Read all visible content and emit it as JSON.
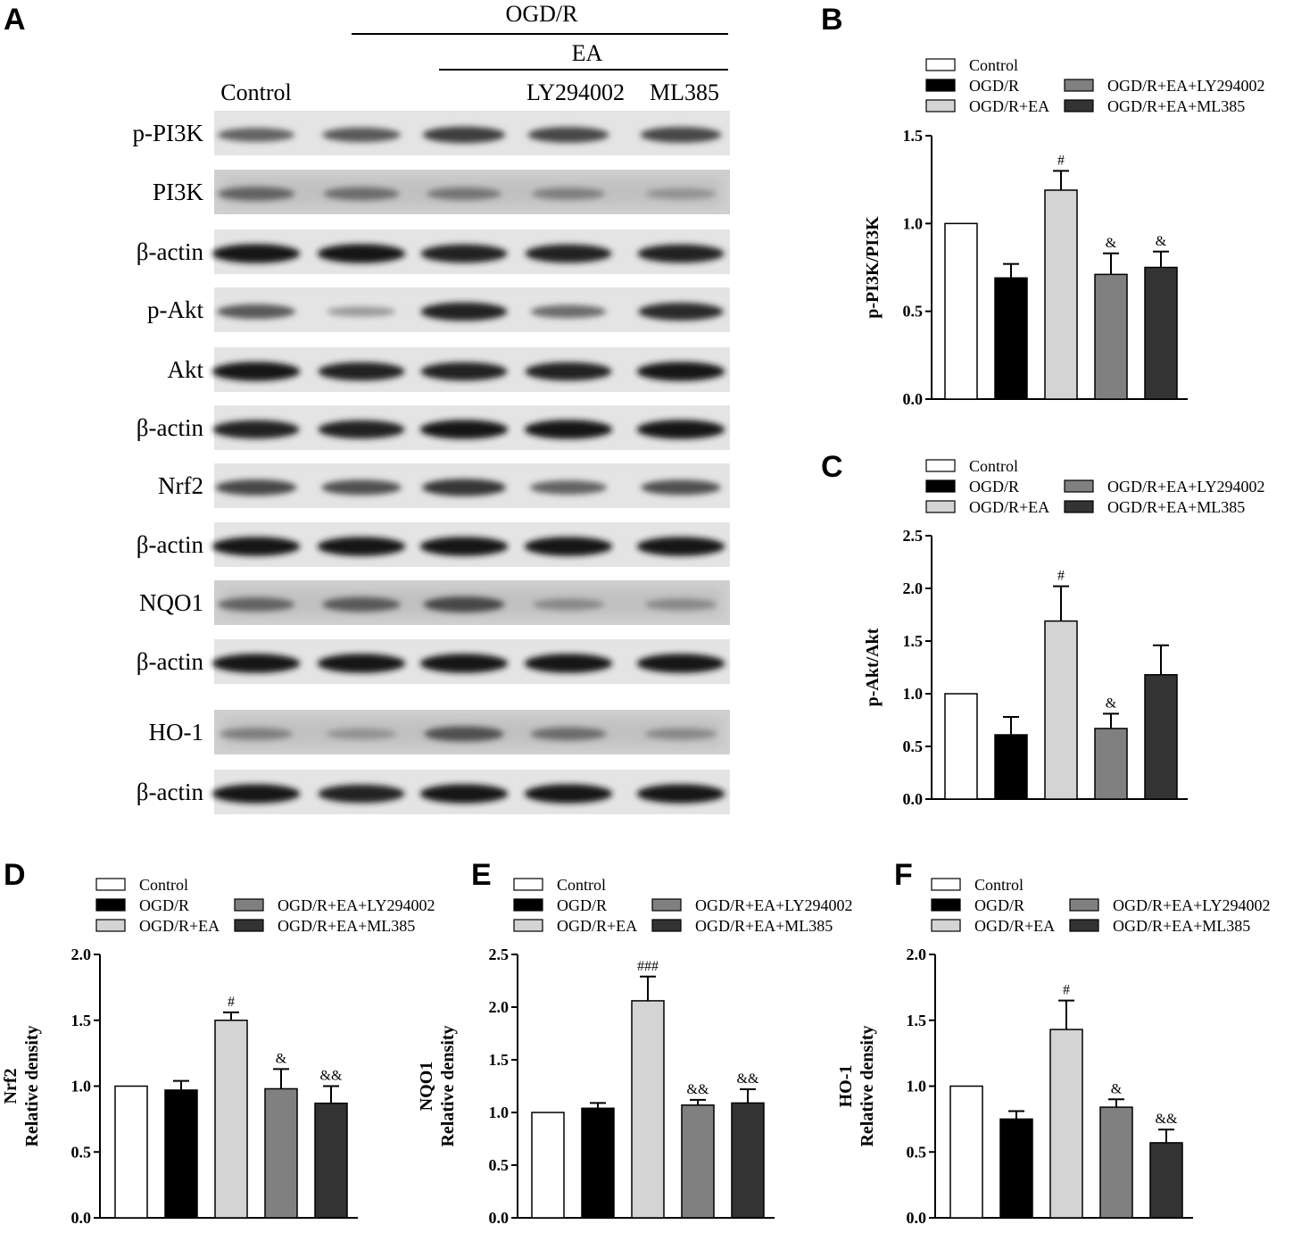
{
  "blot": {
    "panel_letter": "A",
    "header_ogdr": "OGD/R",
    "header_ea": "EA",
    "lane_labels": [
      "Control",
      "",
      "",
      "LY294002",
      "ML385"
    ],
    "rows": [
      {
        "label": "p-PI3K",
        "intensity": [
          0.55,
          0.6,
          0.75,
          0.7,
          0.7
        ],
        "diffuse": false
      },
      {
        "label": "PI3K",
        "intensity": [
          0.55,
          0.5,
          0.45,
          0.4,
          0.3
        ],
        "diffuse": true
      },
      {
        "label": "β-actin",
        "intensity": [
          0.95,
          0.95,
          0.9,
          0.9,
          0.9
        ],
        "diffuse": false
      },
      {
        "label": "p-Akt",
        "intensity": [
          0.6,
          0.25,
          0.9,
          0.5,
          0.85
        ],
        "diffuse": false
      },
      {
        "label": "Akt",
        "intensity": [
          0.95,
          0.9,
          0.9,
          0.9,
          0.95
        ],
        "diffuse": false
      },
      {
        "label": "β-actin",
        "intensity": [
          0.9,
          0.9,
          0.95,
          0.95,
          0.95
        ],
        "diffuse": false
      },
      {
        "label": "Nrf2",
        "intensity": [
          0.7,
          0.65,
          0.8,
          0.55,
          0.65
        ],
        "diffuse": false
      },
      {
        "label": "β-actin",
        "intensity": [
          0.95,
          0.95,
          0.95,
          0.95,
          0.95
        ],
        "diffuse": false
      },
      {
        "label": "NQO1",
        "intensity": [
          0.55,
          0.6,
          0.7,
          0.35,
          0.35
        ],
        "diffuse": true
      },
      {
        "label": "β-actin",
        "intensity": [
          0.95,
          0.95,
          0.95,
          0.95,
          0.95
        ],
        "diffuse": false
      },
      {
        "label": "HO-1",
        "intensity": [
          0.4,
          0.3,
          0.65,
          0.5,
          0.35
        ],
        "diffuse": true
      },
      {
        "label": "β-actin",
        "intensity": [
          0.95,
          0.9,
          0.95,
          0.95,
          0.95
        ],
        "diffuse": false
      }
    ]
  },
  "legend_entries": [
    "Control",
    "OGD/R",
    "OGD/R+EA",
    "OGD/R+EA+LY294002",
    "OGD/R+EA+ML385"
  ],
  "colors": {
    "Control": "#ffffff",
    "OGD/R": "#000000",
    "OGD/R+EA": "#d4d4d4",
    "OGD/R+EA+LY294002": "#808080",
    "OGD/R+EA+ML385": "#333333"
  },
  "chart_data": [
    {
      "panel": "B",
      "type": "bar",
      "categories": [
        "Control",
        "OGD/R",
        "OGD/R+EA",
        "OGD/R+EA+LY294002",
        "OGD/R+EA+ML385"
      ],
      "values": [
        1.0,
        0.69,
        1.19,
        0.71,
        0.75
      ],
      "errors": [
        0,
        0.08,
        0.11,
        0.12,
        0.09
      ],
      "significance": [
        "",
        "",
        "#",
        "&",
        "&"
      ],
      "ylabel": [
        "p-PI3K/PI3K"
      ],
      "ylim": [
        0,
        1.5
      ],
      "yticks": [
        "0.0",
        "0.5",
        "1.0",
        "1.5"
      ]
    },
    {
      "panel": "C",
      "type": "bar",
      "categories": [
        "Control",
        "OGD/R",
        "OGD/R+EA",
        "OGD/R+EA+LY294002",
        "OGD/R+EA+ML385"
      ],
      "values": [
        1.0,
        0.61,
        1.69,
        0.67,
        1.18
      ],
      "errors": [
        0,
        0.17,
        0.33,
        0.14,
        0.28
      ],
      "significance": [
        "",
        "",
        "#",
        "&",
        ""
      ],
      "ylabel": [
        "p-Akt/Akt"
      ],
      "ylim": [
        0,
        2.5
      ],
      "yticks": [
        "0.0",
        "0.5",
        "1.0",
        "1.5",
        "2.0",
        "2.5"
      ]
    },
    {
      "panel": "D",
      "type": "bar",
      "categories": [
        "Control",
        "OGD/R",
        "OGD/R+EA",
        "OGD/R+EA+LY294002",
        "OGD/R+EA+ML385"
      ],
      "values": [
        1.0,
        0.97,
        1.5,
        0.98,
        0.87
      ],
      "errors": [
        0,
        0.07,
        0.06,
        0.15,
        0.13
      ],
      "significance": [
        "",
        "",
        "#",
        "&",
        "&&"
      ],
      "ylabel": [
        "Nrf2",
        "Relative density"
      ],
      "ylim": [
        0,
        2.0
      ],
      "yticks": [
        "0.0",
        "0.5",
        "1.0",
        "1.5",
        "2.0"
      ]
    },
    {
      "panel": "E",
      "type": "bar",
      "categories": [
        "Control",
        "OGD/R",
        "OGD/R+EA",
        "OGD/R+EA+LY294002",
        "OGD/R+EA+ML385"
      ],
      "values": [
        1.0,
        1.04,
        2.06,
        1.07,
        1.09
      ],
      "errors": [
        0,
        0.05,
        0.23,
        0.05,
        0.13
      ],
      "significance": [
        "",
        "",
        "###",
        "&&",
        "&&"
      ],
      "ylabel": [
        "NQO1",
        "Relative density"
      ],
      "ylim": [
        0,
        2.5
      ],
      "yticks": [
        "0.0",
        "0.5",
        "1.0",
        "1.5",
        "2.0",
        "2.5"
      ]
    },
    {
      "panel": "F",
      "type": "bar",
      "categories": [
        "Control",
        "OGD/R",
        "OGD/R+EA",
        "OGD/R+EA+LY294002",
        "OGD/R+EA+ML385"
      ],
      "values": [
        1.0,
        0.75,
        1.43,
        0.84,
        0.57
      ],
      "errors": [
        0,
        0.06,
        0.22,
        0.06,
        0.1
      ],
      "significance": [
        "",
        "",
        "#",
        "&",
        "&&"
      ],
      "ylabel": [
        "HO-1",
        "Relative density"
      ],
      "ylim": [
        0,
        2.0
      ],
      "yticks": [
        "0.0",
        "0.5",
        "1.0",
        "1.5",
        "2.0"
      ]
    }
  ]
}
